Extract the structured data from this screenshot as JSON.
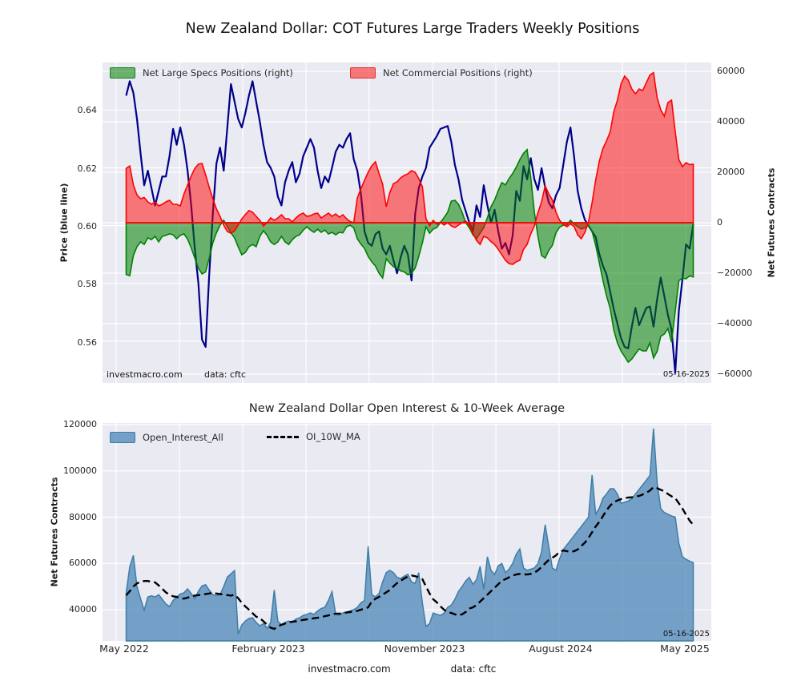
{
  "page_title": "New Zealand Dollar: COT Futures Large Traders Weekly Positions",
  "colors": {
    "plot_bg": "#eaeaf2",
    "grid": "#ffffff",
    "price_line": "#00008b",
    "specs_green": "#008000",
    "commercial_red": "#ff0000",
    "oi_blue": "#4682b4",
    "ma_black": "#000000"
  },
  "footer": {
    "watermark": "investmacro.com",
    "source": "data: cftc"
  },
  "chart_data": [
    {
      "type": "line",
      "title": "New Zealand Dollar: COT Futures Large Traders Weekly Positions",
      "x_range": "weekly, May 2022 to May 2025",
      "x_tick_labels": [
        "May 2022",
        "February 2023",
        "November 2023",
        "August 2024",
        "May 2025"
      ],
      "ylabel_left": "Price (blue line)",
      "ylabel_right": "Net Futures Contracts",
      "yticks_left": [
        "0.64",
        "0.62",
        "0.60",
        "0.58",
        "0.56"
      ],
      "yticks_right": [
        "60000",
        "40000",
        "20000",
        "0",
        "−20000",
        "−40000",
        "−60000"
      ],
      "ylim_left": [
        0.5455,
        0.6565
      ],
      "ylim_right": [
        -63500,
        63500
      ],
      "legend": [
        "Net Large Specs Positions (right)",
        "Net Commercial Positions (right)"
      ],
      "annotations": {
        "watermark": "investmacro.com",
        "source": "data: cftc",
        "last_date": "05-16-2025"
      },
      "series": [
        {
          "name": "Price",
          "type": "line",
          "axis": "left",
          "color": "#00008b",
          "values": [
            0.645,
            0.65,
            0.646,
            0.637,
            0.625,
            0.614,
            0.619,
            0.613,
            0.607,
            0.612,
            0.617,
            0.617,
            0.624,
            0.6335,
            0.628,
            0.634,
            0.628,
            0.619,
            0.607,
            0.592,
            0.58,
            0.5605,
            0.558,
            0.583,
            0.604,
            0.6215,
            0.627,
            0.619,
            0.634,
            0.649,
            0.643,
            0.637,
            0.634,
            0.639,
            0.645,
            0.65,
            0.643,
            0.636,
            0.628,
            0.622,
            0.62,
            0.617,
            0.61,
            0.607,
            0.615,
            0.619,
            0.622,
            0.615,
            0.618,
            0.624,
            0.627,
            0.63,
            0.627,
            0.619,
            0.613,
            0.617,
            0.615,
            0.62,
            0.6256,
            0.628,
            0.627,
            0.63,
            0.632,
            0.623,
            0.619,
            0.611,
            0.598,
            0.594,
            0.593,
            0.597,
            0.598,
            0.592,
            0.59,
            0.593,
            0.588,
            0.5835,
            0.589,
            0.593,
            0.59,
            0.581,
            0.604,
            0.613,
            0.617,
            0.62,
            0.627,
            0.629,
            0.631,
            0.6335,
            0.634,
            0.6345,
            0.629,
            0.621,
            0.616,
            0.609,
            0.605,
            0.601,
            0.598,
            0.607,
            0.603,
            0.614,
            0.607,
            0.601,
            0.6055,
            0.598,
            0.592,
            0.594,
            0.59,
            0.5965,
            0.612,
            0.6086,
            0.6206,
            0.616,
            0.6234,
            0.616,
            0.6124,
            0.6199,
            0.6132,
            0.608,
            0.606,
            0.6105,
            0.613,
            0.621,
            0.629,
            0.634,
            0.624,
            0.612,
            0.606,
            0.602,
            0.6,
            0.598,
            0.596,
            0.59,
            0.586,
            0.583,
            0.577,
            0.571,
            0.566,
            0.561,
            0.558,
            0.5575,
            0.565,
            0.5715,
            0.5655,
            0.5685,
            0.5715,
            0.572,
            0.565,
            0.5745,
            0.582,
            0.5755,
            0.569,
            0.564,
            0.549,
            0.5705,
            0.5815,
            0.5935,
            0.592,
            0.6005
          ]
        },
        {
          "name": "Net Large Specs Positions",
          "type": "area",
          "axis": "right",
          "color": "#008000",
          "values": [
            -20500,
            -21000,
            -13000,
            -9500,
            -7600,
            -8600,
            -6000,
            -6700,
            -5400,
            -7600,
            -5400,
            -5000,
            -4400,
            -4800,
            -6350,
            -5000,
            -4400,
            -6500,
            -10000,
            -14000,
            -18000,
            -20300,
            -19500,
            -14000,
            -8000,
            -4000,
            -1000,
            1000,
            -1500,
            -4000,
            -6000,
            -9500,
            -12700,
            -11750,
            -9500,
            -8600,
            -9500,
            -5400,
            -3175,
            -5000,
            -7600,
            -8600,
            -7600,
            -5400,
            -7600,
            -8600,
            -6700,
            -5400,
            -4800,
            -3000,
            -1600,
            -2850,
            -3800,
            -2550,
            -3800,
            -2850,
            -4450,
            -3800,
            -4750,
            -3800,
            -4000,
            -1600,
            -1000,
            -2000,
            -6350,
            -8500,
            -10150,
            -13350,
            -15500,
            -17150,
            -20000,
            -21900,
            -14300,
            -16000,
            -17450,
            -18000,
            -19050,
            -19500,
            -20650,
            -20000,
            -18000,
            -13350,
            -8000,
            -1600,
            -4150,
            -2550,
            -1900,
            0,
            2000,
            4150,
            8550,
            8900,
            7300,
            4150,
            0,
            -2000,
            -4750,
            -6350,
            -4150,
            -2000,
            2000,
            6350,
            9000,
            12700,
            15900,
            15000,
            17500,
            19500,
            22000,
            25000,
            27500,
            29000,
            18000,
            4150,
            -5400,
            -13000,
            -14000,
            -11000,
            -9000,
            -4000,
            -1800,
            -1000,
            -950,
            1000,
            -500,
            -1500,
            -2500,
            -2000,
            -1000,
            -3500,
            -9000,
            -16000,
            -23000,
            -29000,
            -34000,
            -42550,
            -47625,
            -50800,
            -53000,
            -55250,
            -54000,
            -52000,
            -50000,
            -50800,
            -50800,
            -47600,
            -53600,
            -51000,
            -45000,
            -44100,
            -41900,
            -47300,
            -35000,
            -23000,
            -21900,
            -22225,
            -21000,
            -21500
          ]
        },
        {
          "name": "Net Commercial Positions",
          "type": "area",
          "axis": "right",
          "color": "#ff0000",
          "values": [
            21500,
            22500,
            15000,
            11000,
            9500,
            10000,
            8255,
            7300,
            8255,
            6670,
            7300,
            8255,
            8890,
            7300,
            7300,
            6670,
            11430,
            15000,
            18500,
            21500,
            23200,
            23500,
            19000,
            14000,
            9525,
            5500,
            2500,
            -1000,
            -3500,
            -4200,
            -3175,
            -1000,
            1500,
            3200,
            4800,
            4150,
            2540,
            950,
            -1270,
            0,
            1900,
            950,
            1900,
            3175,
            1600,
            1600,
            300,
            1900,
            3175,
            3800,
            2540,
            2800,
            3500,
            3800,
            1900,
            2860,
            3800,
            2540,
            3500,
            2225,
            3175,
            1600,
            500,
            0,
            9840,
            13500,
            16830,
            20000,
            22540,
            24130,
            19500,
            15240,
            6350,
            12000,
            15500,
            16200,
            17780,
            18730,
            19370,
            20640,
            20000,
            17460,
            14290,
            1600,
            -1270,
            950,
            -650,
            300,
            -950,
            0,
            -1270,
            -1900,
            -950,
            0,
            650,
            -1000,
            -4150,
            -7000,
            -8600,
            -5400,
            -6000,
            -7500,
            -8600,
            -10500,
            -12700,
            -14900,
            -16200,
            -16500,
            -15500,
            -14900,
            -10500,
            -8600,
            -4450,
            -1270,
            4000,
            8250,
            14600,
            11430,
            9000,
            4150,
            950,
            -650,
            -1600,
            -500,
            -1500,
            -4750,
            -6350,
            -3800,
            300,
            8000,
            17000,
            24500,
            29500,
            32500,
            36000,
            44000,
            48500,
            55000,
            58100,
            56500,
            53000,
            51100,
            53000,
            52400,
            55500,
            58500,
            59500,
            49530,
            44770,
            42230,
            47625,
            48580,
            36000,
            25000,
            22225,
            23800,
            23000,
            23200
          ]
        }
      ]
    },
    {
      "type": "area",
      "title": "New Zealand Dollar Open Interest & 10-Week Average",
      "ylabel_left": "Net Futures Contracts",
      "yticks_left": [
        "120000",
        "100000",
        "80000",
        "60000",
        "40000"
      ],
      "ylim": [
        26500,
        120700
      ],
      "legend": [
        "Open_Interest_All",
        "OI_10W_MA"
      ],
      "annotations": {
        "last_date": "05-16-2025"
      },
      "series": [
        {
          "name": "Open_Interest_All",
          "type": "area",
          "color": "#4682b4",
          "values": [
            47300,
            58500,
            63500,
            50000,
            44800,
            39800,
            45500,
            46000,
            45500,
            46500,
            44500,
            42500,
            41400,
            44000,
            45500,
            46800,
            47300,
            49000,
            47000,
            44800,
            48000,
            50300,
            50800,
            48500,
            46500,
            46100,
            46500,
            50000,
            54100,
            55500,
            56900,
            29500,
            33400,
            35100,
            36200,
            36500,
            34500,
            33000,
            34000,
            32000,
            34500,
            48500,
            35000,
            33500,
            34500,
            35100,
            34500,
            36000,
            36500,
            37500,
            38000,
            38600,
            38000,
            39500,
            40500,
            41000,
            44000,
            47800,
            38000,
            37500,
            38600,
            39000,
            39500,
            40000,
            41000,
            43000,
            44000,
            67400,
            46600,
            45500,
            47000,
            52000,
            56000,
            57000,
            56000,
            54000,
            53500,
            54500,
            55300,
            52000,
            51400,
            56000,
            43000,
            32800,
            34000,
            38600,
            38000,
            37500,
            38500,
            41000,
            42000,
            44500,
            47900,
            50000,
            52400,
            54000,
            51000,
            53000,
            58700,
            48900,
            62900,
            57000,
            55200,
            59000,
            60000,
            56000,
            57500,
            60000,
            64000,
            66300,
            58000,
            57000,
            57500,
            58000,
            60000,
            65000,
            76700,
            67300,
            58000,
            57000,
            62000,
            66000,
            68000,
            70000,
            72000,
            74000,
            76000,
            78000,
            80000,
            98200,
            81300,
            84000,
            88200,
            90000,
            92300,
            92300,
            90000,
            86000,
            86500,
            87000,
            88000,
            90000,
            92000,
            94000,
            96000,
            98000,
            118300,
            95000,
            83700,
            82000,
            81300,
            80500,
            80000,
            68700,
            62900,
            61800,
            61000,
            60400
          ]
        },
        {
          "name": "OI_10W_MA",
          "type": "dashed-line",
          "color": "#000000",
          "values": [
            46200,
            48000,
            50000,
            51400,
            52000,
            52400,
            52400,
            52000,
            51800,
            50500,
            49000,
            47500,
            46500,
            45800,
            45500,
            45000,
            44800,
            45200,
            45800,
            46100,
            46300,
            46500,
            46800,
            47000,
            47300,
            47000,
            46800,
            46500,
            46300,
            46100,
            46500,
            45000,
            43000,
            41400,
            40000,
            38500,
            37000,
            36300,
            35000,
            33500,
            32200,
            31700,
            32800,
            33500,
            34000,
            34600,
            34800,
            35000,
            35300,
            35600,
            35800,
            36000,
            36300,
            36500,
            36800,
            37200,
            37500,
            38000,
            38300,
            38300,
            38500,
            38800,
            39000,
            39300,
            39500,
            40000,
            40500,
            41000,
            43500,
            44700,
            45500,
            46600,
            47500,
            48500,
            50100,
            51500,
            52500,
            53500,
            54300,
            54800,
            54500,
            54000,
            53200,
            50000,
            47000,
            44500,
            43200,
            41500,
            40000,
            38900,
            38600,
            38000,
            37500,
            38000,
            39000,
            40500,
            41000,
            42000,
            43500,
            45000,
            46500,
            48000,
            49500,
            51000,
            52500,
            53200,
            54000,
            54800,
            55200,
            55500,
            55300,
            55200,
            55500,
            56000,
            57000,
            58500,
            60000,
            61500,
            62500,
            63500,
            65000,
            65600,
            65300,
            65000,
            65300,
            66000,
            67500,
            69000,
            71000,
            73500,
            76000,
            78000,
            80500,
            83000,
            85000,
            86500,
            87200,
            87800,
            88200,
            88500,
            88600,
            88900,
            89200,
            89800,
            90500,
            91500,
            93000,
            92500,
            91800,
            91200,
            90000,
            89000,
            88200,
            86000,
            83700,
            81000,
            78500,
            76700
          ]
        }
      ]
    }
  ]
}
